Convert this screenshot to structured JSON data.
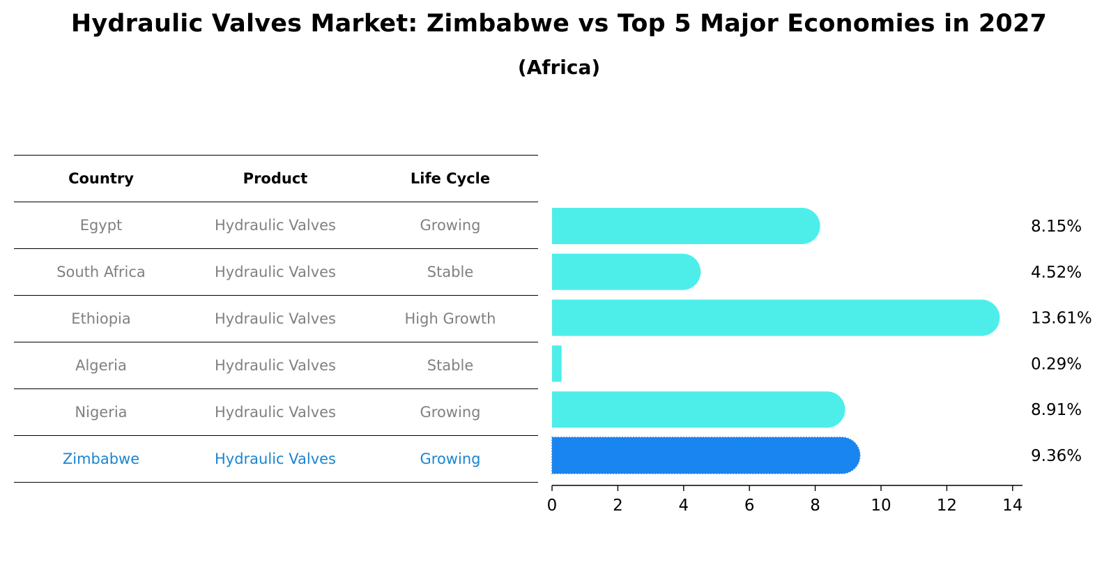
{
  "title": "Hydraulic Valves Market: Zimbabwe vs Top 5 Major Economies in 2027",
  "subtitle": "(Africa)",
  "table": {
    "headers": [
      "Country",
      "Product",
      "Life Cycle"
    ],
    "rows": [
      [
        "Egypt",
        "Hydraulic Valves",
        "Growing"
      ],
      [
        "South Africa",
        "Hydraulic Valves",
        "Stable"
      ],
      [
        "Ethiopia",
        "Hydraulic Valves",
        "High Growth"
      ],
      [
        "Algeria",
        "Hydraulic Valves",
        "Stable"
      ],
      [
        "Nigeria",
        "Hydraulic Valves",
        "Growing"
      ],
      [
        "Zimbabwe",
        "Hydraulic Valves",
        "Growing"
      ]
    ],
    "highlight_row": 5
  },
  "chart_data": {
    "type": "bar",
    "orientation": "horizontal",
    "categories": [
      "Egypt",
      "South Africa",
      "Ethiopia",
      "Algeria",
      "Nigeria",
      "Zimbabwe"
    ],
    "values": [
      8.15,
      4.52,
      13.61,
      0.29,
      8.91,
      9.36
    ],
    "value_labels": [
      "8.15%",
      "4.52%",
      "13.61%",
      "0.29%",
      "8.91%",
      "9.36%"
    ],
    "xlim": [
      0,
      14.3
    ],
    "xticks": [
      0,
      2,
      4,
      6,
      8,
      10,
      12,
      14
    ],
    "highlight_index": 5,
    "colors": {
      "default": "#4deeea",
      "highlight": "#1985f0"
    }
  }
}
